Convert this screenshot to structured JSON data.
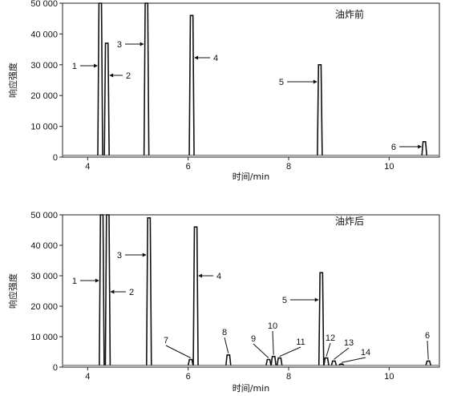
{
  "chart_data": [
    {
      "type": "line",
      "condition_label": "油炸前",
      "xlabel": "时间/min",
      "ylabel": "响应强度",
      "xlim": [
        3.5,
        11.0
      ],
      "ylim": [
        0,
        50000
      ],
      "xticks": [
        4,
        6,
        8,
        10
      ],
      "xtick_labels": [
        "4",
        "6",
        "8",
        "10"
      ],
      "yticks": [
        0,
        10000,
        20000,
        30000,
        40000,
        50000
      ],
      "ytick_labels": [
        "0",
        "10 000",
        "20 000",
        "30 000",
        "40 000",
        "50 000"
      ],
      "peaks": [
        {
          "label": "1",
          "time": 4.25,
          "height": 50000
        },
        {
          "label": "2",
          "time": 4.38,
          "height": 37000
        },
        {
          "label": "3",
          "time": 5.17,
          "height": 50000
        },
        {
          "label": "4",
          "time": 6.07,
          "height": 46000
        },
        {
          "label": "5",
          "time": 8.62,
          "height": 30000
        },
        {
          "label": "6",
          "time": 10.7,
          "height": 5000
        }
      ]
    },
    {
      "type": "line",
      "condition_label": "油炸后",
      "xlabel": "时间/min",
      "ylabel": "响应强度",
      "xlim": [
        3.5,
        11.0
      ],
      "ylim": [
        0,
        50000
      ],
      "xticks": [
        4,
        6,
        8,
        10
      ],
      "xtick_labels": [
        "4",
        "6",
        "8",
        "10"
      ],
      "yticks": [
        0,
        10000,
        20000,
        30000,
        40000,
        50000
      ],
      "ytick_labels": [
        "0",
        "10 000",
        "20 000",
        "30 000",
        "40 000",
        "50 000"
      ],
      "peaks": [
        {
          "label": "1",
          "time": 4.28,
          "height": 50000
        },
        {
          "label": "2",
          "time": 4.4,
          "height": 50000
        },
        {
          "label": "3",
          "time": 5.22,
          "height": 49000
        },
        {
          "label": "4",
          "time": 6.15,
          "height": 46000
        },
        {
          "label": "5",
          "time": 8.65,
          "height": 31000
        },
        {
          "label": "6",
          "time": 10.78,
          "height": 2000
        },
        {
          "label": "7",
          "time": 6.05,
          "height": 2500
        },
        {
          "label": "8",
          "time": 6.8,
          "height": 4000
        },
        {
          "label": "9",
          "time": 7.6,
          "height": 2500
        },
        {
          "label": "10",
          "time": 7.7,
          "height": 3500
        },
        {
          "label": "11",
          "time": 7.82,
          "height": 3000
        },
        {
          "label": "12",
          "time": 8.75,
          "height": 3000
        },
        {
          "label": "13",
          "time": 8.9,
          "height": 2000
        },
        {
          "label": "14",
          "time": 9.05,
          "height": 1000
        }
      ]
    }
  ]
}
